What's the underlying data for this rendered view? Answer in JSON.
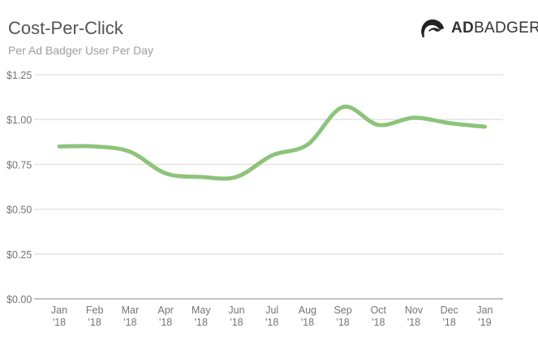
{
  "header": {
    "title": "Cost-Per-Click",
    "subtitle": "Per Ad Badger User Per Day",
    "logo_bold": "AD",
    "logo_light": "BADGER"
  },
  "chart_data": {
    "type": "line",
    "title": "Cost-Per-Click",
    "subtitle": "Per Ad Badger User Per Day",
    "xlabel": "",
    "ylabel": "",
    "categories": [
      [
        "Jan",
        "'18"
      ],
      [
        "Feb",
        "'18"
      ],
      [
        "Mar",
        "'18"
      ],
      [
        "Apr",
        "'18"
      ],
      [
        "May",
        "'18"
      ],
      [
        "Jun",
        "'18"
      ],
      [
        "Jul",
        "'18"
      ],
      [
        "Aug",
        "'18"
      ],
      [
        "Sep",
        "'18"
      ],
      [
        "Oct",
        "'18"
      ],
      [
        "Nov",
        "'18"
      ],
      [
        "Dec",
        "'18"
      ],
      [
        "Jan",
        "'19"
      ]
    ],
    "series": [
      {
        "name": "Cost-Per-Click",
        "values": [
          0.85,
          0.85,
          0.82,
          0.7,
          0.68,
          0.68,
          0.8,
          0.86,
          1.07,
          0.97,
          1.01,
          0.98,
          0.96
        ]
      }
    ],
    "ylim": [
      0,
      1.25
    ],
    "yticks": [
      0,
      0.25,
      0.5,
      0.75,
      1.0,
      1.25
    ],
    "ytick_labels": [
      "$0.00",
      "$0.25",
      "$0.50",
      "$0.75",
      "$1.00",
      "$1.25"
    ],
    "grid": true,
    "line_color": "#8cc47a",
    "grid_color": "#e0e0e0"
  }
}
